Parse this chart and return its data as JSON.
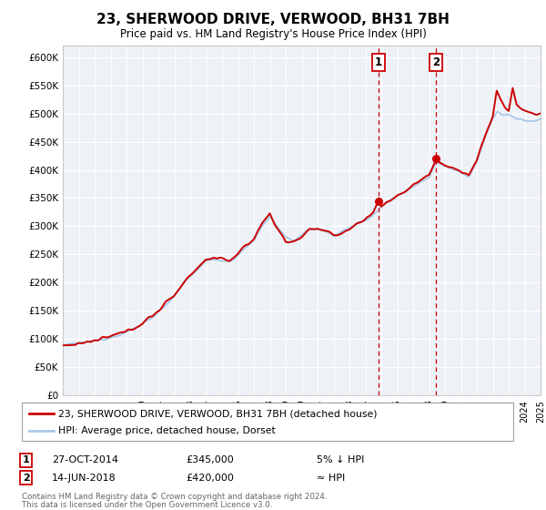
{
  "title": "23, SHERWOOD DRIVE, VERWOOD, BH31 7BH",
  "subtitle": "Price paid vs. HM Land Registry's House Price Index (HPI)",
  "legend_line1": "23, SHERWOOD DRIVE, VERWOOD, BH31 7BH (detached house)",
  "legend_line2": "HPI: Average price, detached house, Dorset",
  "footer1": "Contains HM Land Registry data © Crown copyright and database right 2024.",
  "footer2": "This data is licensed under the Open Government Licence v3.0.",
  "annotation1_label": "1",
  "annotation1_date": "27-OCT-2014",
  "annotation1_price": "£345,000",
  "annotation1_note": "5% ↓ HPI",
  "annotation2_label": "2",
  "annotation2_date": "14-JUN-2018",
  "annotation2_price": "£420,000",
  "annotation2_note": "≈ HPI",
  "vline1_x": 2014.82,
  "vline2_x": 2018.45,
  "dot1_x": 2014.82,
  "dot1_y": 345000,
  "dot2_x": 2018.45,
  "dot2_y": 420000,
  "hpi_color": "#a8c8e8",
  "price_color": "#cc0000",
  "dot_color": "#cc0000",
  "background_color": "#ffffff",
  "plot_bg_color": "#eef2f7",
  "ylim": [
    0,
    620000
  ],
  "xlim": [
    1995,
    2025
  ],
  "yticks": [
    0,
    50000,
    100000,
    150000,
    200000,
    250000,
    300000,
    350000,
    400000,
    450000,
    500000,
    550000,
    600000
  ],
  "xticks": [
    1995,
    1996,
    1997,
    1998,
    1999,
    2000,
    2001,
    2002,
    2003,
    2004,
    2005,
    2006,
    2007,
    2008,
    2009,
    2010,
    2011,
    2012,
    2013,
    2014,
    2015,
    2016,
    2017,
    2018,
    2019,
    2020,
    2021,
    2022,
    2023,
    2024,
    2025
  ]
}
